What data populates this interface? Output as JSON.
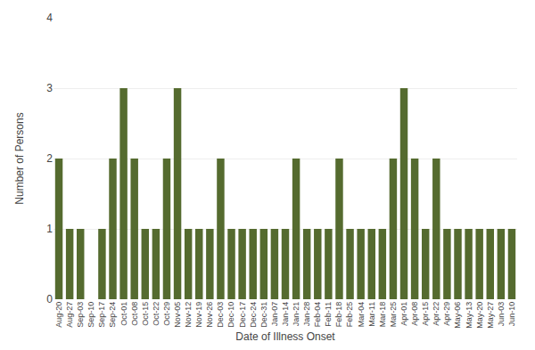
{
  "chart_data": {
    "type": "bar",
    "categories": [
      "Aug-20",
      "Aug-27",
      "Sep-03",
      "Sep-10",
      "Sep-17",
      "Sep-24",
      "Oct-01",
      "Oct-08",
      "Oct-15",
      "Oct-22",
      "Oct-29",
      "Nov-05",
      "Nov-12",
      "Nov-19",
      "Nov-26",
      "Dec-03",
      "Dec-10",
      "Dec-17",
      "Dec-24",
      "Dec-31",
      "Jan-07",
      "Jan-14",
      "Jan-21",
      "Jan-28",
      "Feb-04",
      "Feb-11",
      "Feb-18",
      "Feb-25",
      "Mar-04",
      "Mar-11",
      "Mar-18",
      "Mar-25",
      "Apr-01",
      "Apr-08",
      "Apr-15",
      "Apr-22",
      "Apr-29",
      "May-06",
      "May-13",
      "May-20",
      "May-27",
      "Jun-03",
      "Jun-10"
    ],
    "values": [
      2,
      1,
      1,
      0,
      1,
      2,
      3,
      2,
      1,
      1,
      2,
      3,
      1,
      1,
      1,
      2,
      1,
      1,
      1,
      1,
      1,
      1,
      2,
      1,
      1,
      1,
      2,
      1,
      1,
      1,
      1,
      2,
      3,
      2,
      1,
      2,
      1,
      1,
      1,
      1,
      1,
      1,
      1
    ],
    "color": "#556b2f",
    "xlabel": "Date of Illness Onset",
    "ylabel": "Number of Persons",
    "ylim": [
      0,
      4
    ],
    "yticks": [
      0,
      1,
      2,
      3,
      4
    ],
    "grid": true
  }
}
